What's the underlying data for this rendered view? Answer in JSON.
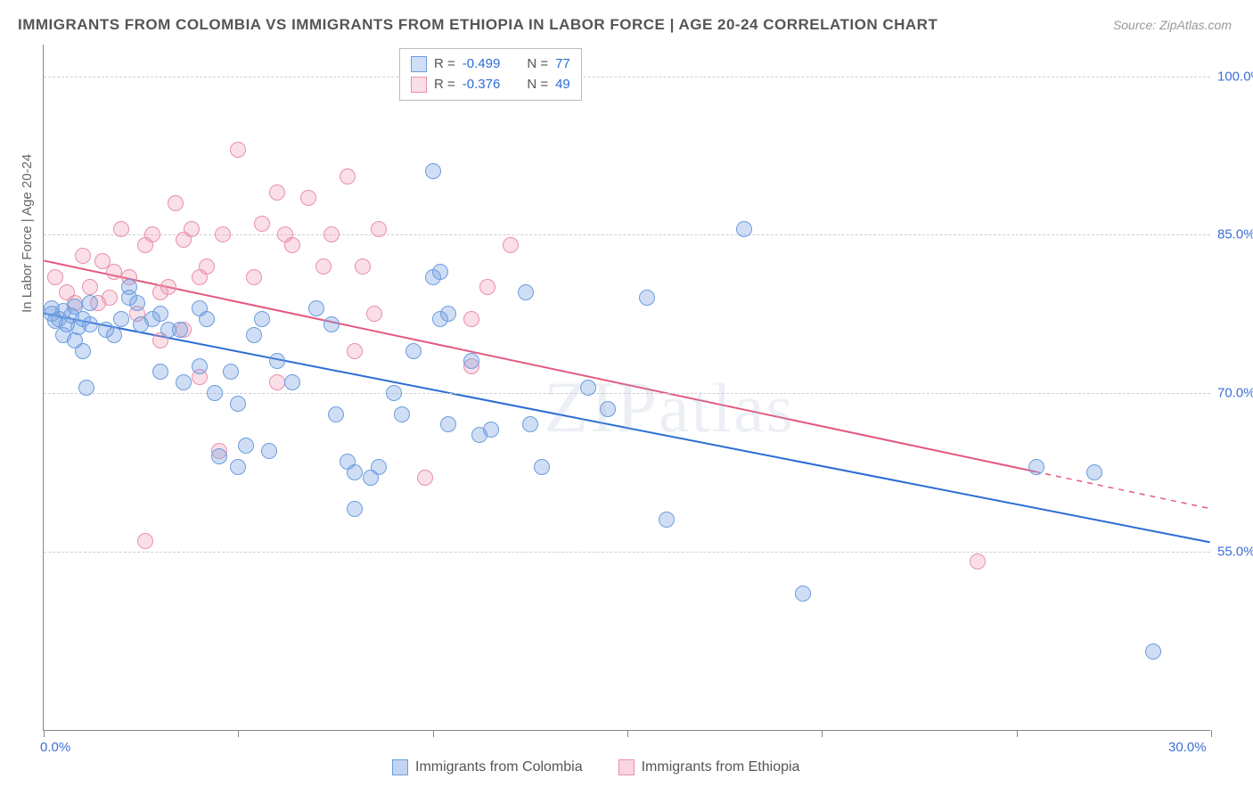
{
  "title": "IMMIGRANTS FROM COLOMBIA VS IMMIGRANTS FROM ETHIOPIA IN LABOR FORCE | AGE 20-24 CORRELATION CHART",
  "source": "Source: ZipAtlas.com",
  "ylabel": "In Labor Force | Age 20-24",
  "watermark": "ZIPatlas",
  "chart": {
    "type": "scatter",
    "xlim": [
      0,
      30
    ],
    "ylim": [
      38,
      103
    ],
    "yticks": [
      55.0,
      70.0,
      85.0,
      100.0
    ],
    "ytick_labels": [
      "55.0%",
      "70.0%",
      "85.0%",
      "100.0%"
    ],
    "xticks_minor": [
      0,
      5,
      10,
      15,
      20,
      25,
      30
    ],
    "xtick_labels": {
      "0": "0.0%",
      "30": "30.0%"
    },
    "background_color": "#ffffff",
    "grid_color": "#d8d8d8",
    "marker_radius": 9,
    "marker_stroke_width": 1.5,
    "series": [
      {
        "name": "Immigrants from Colombia",
        "fill": "rgba(120,160,225,0.35)",
        "stroke": "#6a9de0",
        "R": "-0.499",
        "N": "77",
        "trend": {
          "x1": 0,
          "y1": 77.5,
          "x2": 30,
          "y2": 55.8,
          "color": "#2b6cd4",
          "width": 2
        },
        "points": [
          [
            0.2,
            77.5
          ],
          [
            0.2,
            78.0
          ],
          [
            0.3,
            76.8
          ],
          [
            0.5,
            77.8
          ],
          [
            0.4,
            77.0
          ],
          [
            0.6,
            76.5
          ],
          [
            0.7,
            77.3
          ],
          [
            0.8,
            78.2
          ],
          [
            0.9,
            76.2
          ],
          [
            1.0,
            77.0
          ],
          [
            0.5,
            75.5
          ],
          [
            0.8,
            75.0
          ],
          [
            1.2,
            78.5
          ],
          [
            1.0,
            74.0
          ],
          [
            1.6,
            76.0
          ],
          [
            1.2,
            76.5
          ],
          [
            1.1,
            70.5
          ],
          [
            1.8,
            75.5
          ],
          [
            2.0,
            77.0
          ],
          [
            2.2,
            79.0
          ],
          [
            2.4,
            78.5
          ],
          [
            2.2,
            80.0
          ],
          [
            2.5,
            76.5
          ],
          [
            2.8,
            77.0
          ],
          [
            3.0,
            77.5
          ],
          [
            3.2,
            76.0
          ],
          [
            3.5,
            76.0
          ],
          [
            4.0,
            78.0
          ],
          [
            4.2,
            77.0
          ],
          [
            3.0,
            72.0
          ],
          [
            3.6,
            71.0
          ],
          [
            4.0,
            72.5
          ],
          [
            4.4,
            70.0
          ],
          [
            4.8,
            72.0
          ],
          [
            5.0,
            69.0
          ],
          [
            5.4,
            75.5
          ],
          [
            5.6,
            77.0
          ],
          [
            6.0,
            73.0
          ],
          [
            6.4,
            71.0
          ],
          [
            4.5,
            64.0
          ],
          [
            5.0,
            63.0
          ],
          [
            5.2,
            65.0
          ],
          [
            5.8,
            64.5
          ],
          [
            7.0,
            78.0
          ],
          [
            7.4,
            76.5
          ],
          [
            7.5,
            68.0
          ],
          [
            7.8,
            63.5
          ],
          [
            8.0,
            62.5
          ],
          [
            8.4,
            62.0
          ],
          [
            8.6,
            63.0
          ],
          [
            8.0,
            59.0
          ],
          [
            9.0,
            70.0
          ],
          [
            9.2,
            68.0
          ],
          [
            9.5,
            74.0
          ],
          [
            10.0,
            81.0
          ],
          [
            10.2,
            81.5
          ],
          [
            10.0,
            91.0
          ],
          [
            10.2,
            77.0
          ],
          [
            10.4,
            77.5
          ],
          [
            10.4,
            67.0
          ],
          [
            11.0,
            73.0
          ],
          [
            11.2,
            66.0
          ],
          [
            11.5,
            66.5
          ],
          [
            12.5,
            67.0
          ],
          [
            12.4,
            79.5
          ],
          [
            12.8,
            63.0
          ],
          [
            14.0,
            70.5
          ],
          [
            14.5,
            68.5
          ],
          [
            15.5,
            79.0
          ],
          [
            16.0,
            58.0
          ],
          [
            18.0,
            85.5
          ],
          [
            19.5,
            51.0
          ],
          [
            25.5,
            63.0
          ],
          [
            27.0,
            62.5
          ],
          [
            28.5,
            45.5
          ]
        ]
      },
      {
        "name": "Immigrants from Ethiopia",
        "fill": "rgba(240,150,175,0.30)",
        "stroke": "#e890ab",
        "R": "-0.376",
        "N": "49",
        "trend": {
          "x1": 0,
          "y1": 82.5,
          "x2": 25.5,
          "y2": 62.5,
          "color": "#e35a7f",
          "width": 2,
          "extend_dash_to": 30,
          "extend_y": 59.0
        },
        "points": [
          [
            0.3,
            81.0
          ],
          [
            0.6,
            79.5
          ],
          [
            0.8,
            78.5
          ],
          [
            1.0,
            83.0
          ],
          [
            1.2,
            80.0
          ],
          [
            1.5,
            82.5
          ],
          [
            1.8,
            81.5
          ],
          [
            2.0,
            85.5
          ],
          [
            1.4,
            78.5
          ],
          [
            1.7,
            79.0
          ],
          [
            2.2,
            81.0
          ],
          [
            2.6,
            84.0
          ],
          [
            2.8,
            85.0
          ],
          [
            2.4,
            77.5
          ],
          [
            3.0,
            79.5
          ],
          [
            3.2,
            80.0
          ],
          [
            3.4,
            88.0
          ],
          [
            3.6,
            84.5
          ],
          [
            3.8,
            85.5
          ],
          [
            4.0,
            81.0
          ],
          [
            4.2,
            82.0
          ],
          [
            4.6,
            85.0
          ],
          [
            5.0,
            93.0
          ],
          [
            5.4,
            81.0
          ],
          [
            3.0,
            75.0
          ],
          [
            3.6,
            76.0
          ],
          [
            4.0,
            71.5
          ],
          [
            5.6,
            86.0
          ],
          [
            6.0,
            89.0
          ],
          [
            6.2,
            85.0
          ],
          [
            6.4,
            84.0
          ],
          [
            6.8,
            88.5
          ],
          [
            7.2,
            82.0
          ],
          [
            7.4,
            85.0
          ],
          [
            7.8,
            90.5
          ],
          [
            8.2,
            82.0
          ],
          [
            8.6,
            85.5
          ],
          [
            8.5,
            77.5
          ],
          [
            9.8,
            62.0
          ],
          [
            11.0,
            77.0
          ],
          [
            11.4,
            80.0
          ],
          [
            11.0,
            72.5
          ],
          [
            12.0,
            84.0
          ],
          [
            2.6,
            56.0
          ],
          [
            4.5,
            64.5
          ],
          [
            6.0,
            71.0
          ],
          [
            8.0,
            74.0
          ],
          [
            24.0,
            54.0
          ]
        ]
      }
    ]
  },
  "legend_bottom": [
    {
      "label": "Immigrants from Colombia",
      "fill": "rgba(120,160,225,0.45)",
      "stroke": "#6a9de0"
    },
    {
      "label": "Immigrants from Ethiopia",
      "fill": "rgba(240,150,175,0.40)",
      "stroke": "#e890ab"
    }
  ],
  "legend_top_labels": {
    "R": "R =",
    "N": "N ="
  },
  "colors": {
    "stat_value": "#2b6cd4",
    "stat_label": "#555555"
  }
}
